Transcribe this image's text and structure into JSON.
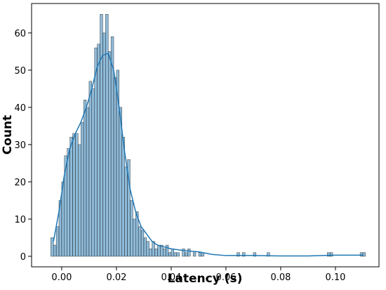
{
  "chart_data": {
    "type": "histogram",
    "xlabel": "Latency (s)",
    "ylabel": "Count",
    "bins": [
      -0.004,
      -0.003,
      -0.002,
      -0.001,
      0,
      0.001,
      0.002,
      0.003,
      0.004,
      0.005,
      0.006,
      0.007,
      0.008,
      0.009,
      0.01,
      0.011,
      0.012,
      0.013,
      0.014,
      0.015,
      0.016,
      0.017,
      0.018,
      0.019,
      0.02,
      0.021,
      0.022,
      0.023,
      0.024,
      0.025,
      0.026,
      0.027,
      0.028,
      0.029,
      0.03,
      0.031,
      0.032,
      0.033,
      0.034,
      0.035,
      0.036,
      0.037,
      0.038,
      0.039,
      0.04,
      0.041,
      0.042,
      0.043,
      0.044,
      0.045,
      0.046,
      0.047,
      0.048,
      0.049,
      0.05,
      0.051,
      0.052,
      0.053,
      0.054,
      0.055,
      0.056,
      0.057,
      0.058,
      0.059,
      0.06,
      0.061,
      0.062,
      0.063,
      0.064,
      0.065,
      0.066,
      0.067,
      0.068,
      0.069,
      0.07,
      0.071,
      0.072,
      0.073,
      0.074,
      0.075,
      0.076,
      0.077,
      0.078,
      0.079,
      0.08,
      0.081,
      0.082,
      0.083,
      0.084,
      0.085,
      0.086,
      0.087,
      0.088,
      0.089,
      0.09,
      0.091,
      0.092,
      0.093,
      0.094,
      0.095,
      0.096,
      0.097,
      0.098,
      0.099,
      0.1,
      0.101,
      0.102,
      0.103,
      0.104,
      0.105,
      0.106,
      0.107,
      0.108,
      0.109,
      0.11,
      0.111
    ],
    "values": [
      5,
      3,
      8,
      15,
      20,
      27,
      29,
      32,
      33,
      33,
      30,
      36,
      42,
      40,
      47,
      45,
      56,
      57,
      65,
      60,
      65,
      55,
      59,
      48,
      50,
      40,
      32,
      24,
      26,
      15,
      10,
      12,
      8,
      7,
      5,
      4,
      2,
      4,
      2,
      3,
      3,
      2,
      3,
      1,
      2,
      1,
      1,
      0,
      2,
      1,
      2,
      0,
      1,
      0,
      1,
      1,
      0,
      0,
      0,
      0,
      0,
      0,
      0,
      0,
      0,
      0,
      0,
      0,
      1,
      0,
      1,
      0,
      0,
      0,
      1,
      0,
      0,
      0,
      0,
      1,
      0,
      0,
      0,
      0,
      0,
      0,
      0,
      0,
      0,
      0,
      0,
      0,
      0,
      0,
      0,
      0,
      0,
      0,
      0,
      0,
      0,
      1,
      1,
      0,
      0,
      0,
      0,
      0,
      0,
      0,
      0,
      0,
      0,
      1,
      1
    ],
    "color": "#1f77b4",
    "kde": {
      "x": [
        -0.003,
        -0.001,
        0.001,
        0.003,
        0.005,
        0.007,
        0.009,
        0.011,
        0.013,
        0.015,
        0.017,
        0.019,
        0.021,
        0.023,
        0.025,
        0.027,
        0.029,
        0.031,
        0.033,
        0.035,
        0.04,
        0.045,
        0.05,
        0.055,
        0.06,
        0.07,
        0.08,
        0.09,
        0.1,
        0.11
      ],
      "values": [
        4,
        12,
        22,
        29,
        33,
        36,
        40,
        45,
        51,
        54,
        54.5,
        50,
        40,
        28,
        18,
        12,
        8,
        6,
        4,
        3,
        2,
        1.5,
        1.2,
        0.5,
        0.2,
        0.2,
        0.1,
        0.1,
        0.3,
        0.3
      ]
    },
    "xlim": [
      -0.011,
      0.1159
    ],
    "ylim": [
      -2.83,
      67.9
    ],
    "xticks": [
      {
        "value": 0,
        "label": "0.00"
      },
      {
        "value": 0.02,
        "label": "0.02"
      },
      {
        "value": 0.04,
        "label": "0.04"
      },
      {
        "value": 0.06,
        "label": "0.06"
      },
      {
        "value": 0.08,
        "label": "0.08"
      },
      {
        "value": 0.1,
        "label": "0.10"
      }
    ],
    "yticks": [
      0,
      10,
      20,
      30,
      40,
      50,
      60
    ]
  }
}
